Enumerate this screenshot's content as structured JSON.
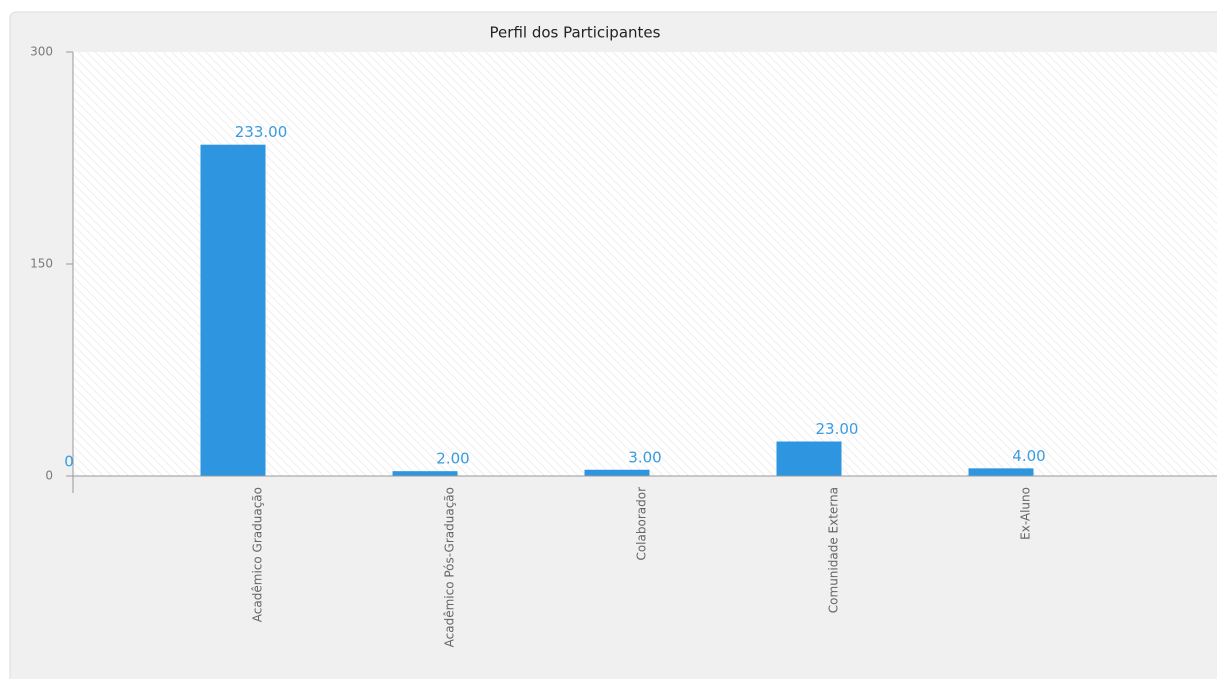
{
  "chart_data": {
    "type": "bar",
    "title": "Perfil dos Participantes",
    "categories": [
      null,
      "Acadêmico Graduação",
      "Acadêmico Pós-Graduação",
      "Colaborador",
      "Comunidade Externa",
      "Ex-Aluno",
      null
    ],
    "values": [
      0,
      233,
      2,
      3,
      23,
      4,
      0
    ],
    "value_labels": [
      "0",
      "233.00",
      "2.00",
      "3.00",
      "23.00",
      "4.00",
      null
    ],
    "color": "#2e95e0",
    "ylim": [
      0,
      300
    ],
    "yticks": [
      0,
      150,
      300
    ]
  }
}
